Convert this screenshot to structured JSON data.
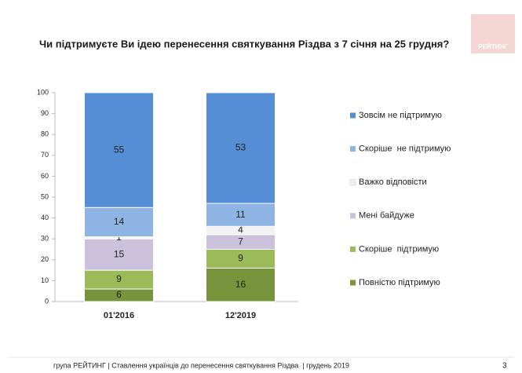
{
  "chart_data": {
    "type": "stacked-bar",
    "title": "Чи підтримуєте Ви ідею перенесення святкування Різдва з 7 січня на 25 грудня?",
    "categories": [
      "01'2016",
      "12'2019"
    ],
    "series": [
      {
        "name": "Повністю підтримую",
        "color": "#77933c",
        "values": [
          6,
          16
        ]
      },
      {
        "name": "Скоріше  підтримую",
        "color": "#9bbb59",
        "values": [
          9,
          9
        ]
      },
      {
        "name": "Мені байдуже",
        "color": "#ccc1da",
        "values": [
          15,
          7
        ]
      },
      {
        "name": "Важко відповісти",
        "color": "#f2f2f2",
        "values": [
          1,
          4
        ]
      },
      {
        "name": "Скоріше  не підтримую",
        "color": "#8eb4e3",
        "values": [
          14,
          11
        ]
      },
      {
        "name": "Зовсім не підтримую",
        "color": "#558ed5",
        "values": [
          55,
          53
        ]
      }
    ],
    "ylim": [
      0,
      100
    ],
    "yticks": [
      0,
      10,
      20,
      30,
      40,
      50,
      60,
      70,
      80,
      90,
      100
    ],
    "legend": "right"
  },
  "logo": "РЕЙТИНГ",
  "footer": "група РЕЙТИНГ | Ставлення українців до перенесення святкування Різдва  | грудень 2019",
  "page_number": "3"
}
